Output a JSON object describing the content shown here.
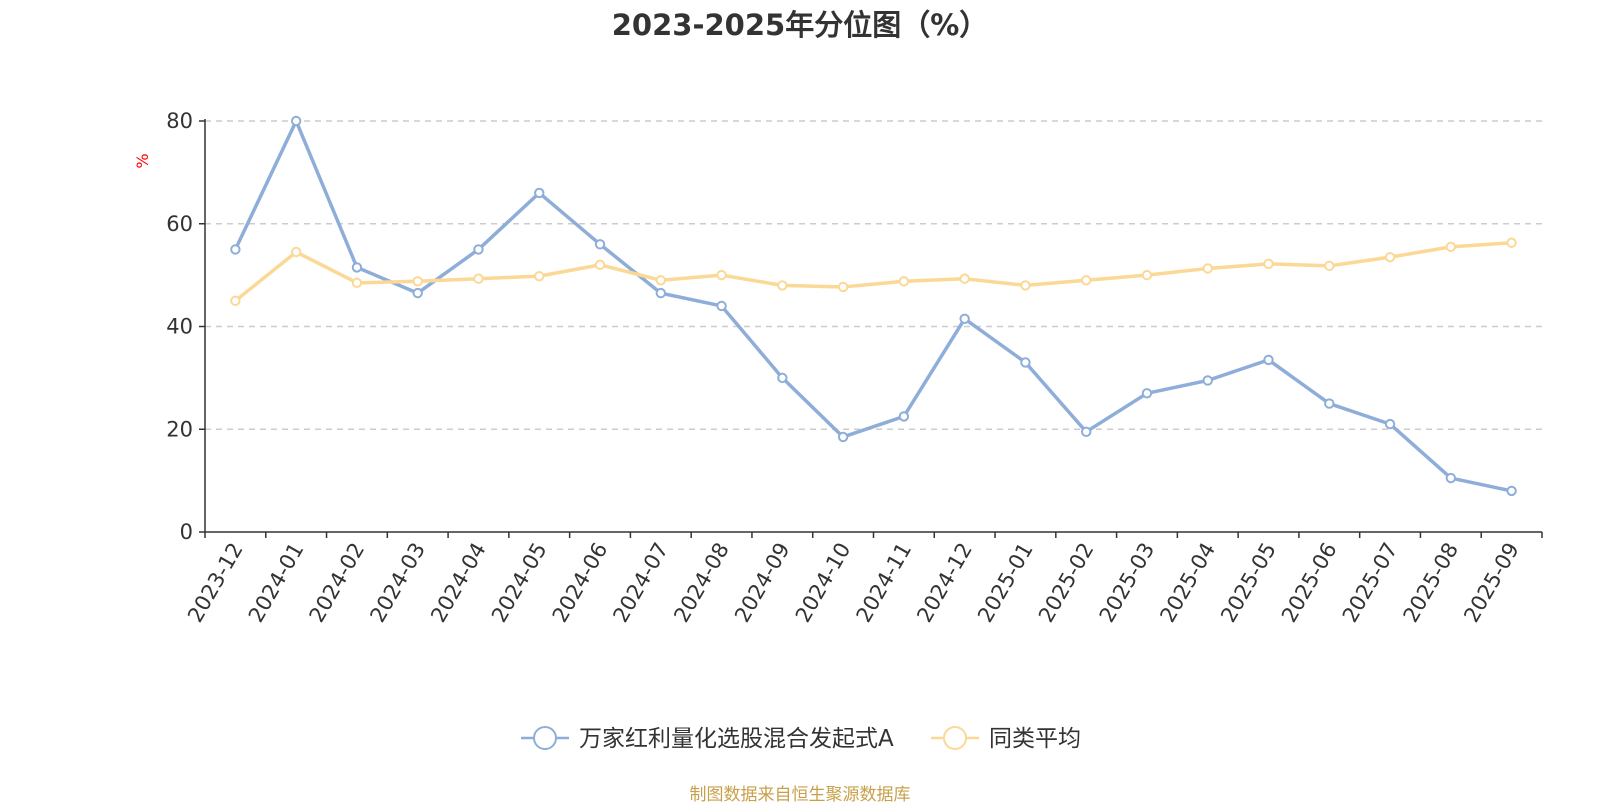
{
  "title": "2023-2025年分位图（%）",
  "source_note": "制图数据来自恒生聚源数据库",
  "chart_data": {
    "type": "line",
    "title": "2023-2025年分位图（%）",
    "y_unit": "%",
    "ylim": [
      0,
      80
    ],
    "y_ticks": [
      0,
      20,
      40,
      60,
      80
    ],
    "grid": true,
    "legend_position": "bottom",
    "categories": [
      "2023-12",
      "2024-01",
      "2024-02",
      "2024-03",
      "2024-04",
      "2024-05",
      "2024-06",
      "2024-07",
      "2024-08",
      "2024-09",
      "2024-10",
      "2024-11",
      "2024-12",
      "2025-01",
      "2025-02",
      "2025-03",
      "2025-04",
      "2025-05",
      "2025-06",
      "2025-07",
      "2025-08",
      "2025-09"
    ],
    "series": [
      {
        "name": "万家红利量化选股混合发起式A",
        "color": "#8eaed9",
        "values": [
          55.0,
          80.0,
          51.5,
          46.5,
          55.0,
          66.0,
          56.0,
          46.5,
          44.0,
          30.0,
          18.5,
          22.5,
          41.5,
          33.0,
          19.5,
          27.0,
          29.5,
          33.5,
          25.0,
          21.0,
          10.5,
          8.0
        ]
      },
      {
        "name": "同类平均",
        "color": "#fbd896",
        "values": [
          45.0,
          54.5,
          48.5,
          48.8,
          49.3,
          49.8,
          52.0,
          49.0,
          50.0,
          48.0,
          47.7,
          48.8,
          49.3,
          48.0,
          49.0,
          50.0,
          51.3,
          52.2,
          51.8,
          53.5,
          55.5,
          56.3
        ]
      }
    ]
  },
  "colors": {
    "axis": "#333333",
    "grid": "#cccccc",
    "unit_label": "#ff0000",
    "source_note": "#c8a04a"
  }
}
